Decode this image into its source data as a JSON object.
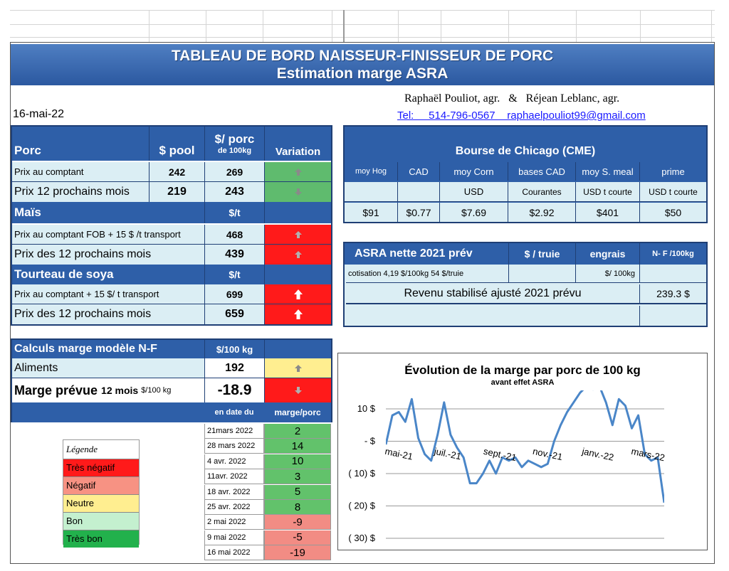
{
  "banner": {
    "title": "TABLEAU DE BORD NAISSEUR-FINISSEUR  DE PORC",
    "subtitle": "Estimation marge ASRA"
  },
  "date": "16-mai-22",
  "authors": "Raphaël Pouliot, agr.   &   Réjean Leblanc, agr.",
  "contact": "Tel:     514-796-0567    raphaelpouliot99@gmail.com",
  "porc": {
    "header": {
      "label": "Porc",
      "pool": "$ pool",
      "porc_top": "$/ porc",
      "porc_bottom": "de 100kg",
      "variation": "Variation"
    },
    "rows": [
      {
        "label": "Prix au comptant",
        "pool": "242",
        "value": "269"
      },
      {
        "label": "Prix 12 prochains mois",
        "pool": "219",
        "value": "243"
      }
    ]
  },
  "mais": {
    "header": {
      "label": "Maïs",
      "unit": "$/t"
    },
    "rows": [
      {
        "label": "Prix au comptant  FOB + 15 $ /t transport",
        "value": "468"
      },
      {
        "label": "Prix des 12 prochains mois",
        "value": "439"
      }
    ]
  },
  "soya": {
    "header": {
      "label": "Tourteau de soya",
      "unit": "$/t"
    },
    "rows": [
      {
        "label": "Prix au comptant  + 15 $/ t  transport",
        "value": "699"
      },
      {
        "label": "Prix des 12 prochains mois",
        "value": "659"
      }
    ]
  },
  "cme": {
    "title": "Bourse de Chicago (CME)",
    "headers": [
      "moy Hog",
      "CAD",
      "moy Corn",
      "bases CAD",
      "moy S. meal",
      "prime"
    ],
    "units": [
      "",
      "",
      "USD",
      "Courantes",
      "USD t courte",
      "USD t courte"
    ],
    "values": [
      "$91",
      "$0.77",
      "$7.69",
      "$2.92",
      "$401",
      "$50"
    ]
  },
  "asra": {
    "title": "ASRA nette 2021 prév",
    "col_truie": "$ / truie",
    "col_engrais": "engrais",
    "col_nf": "N- F /100kg",
    "cotisation": "cotisation 4,19 $/100kg  54 $/truie",
    "engrais_unit": "$/ 100kg",
    "revenu_label": "Revenu stabilisé ajusté 2021 prévu",
    "revenu_value": "239.3 $"
  },
  "calculs": {
    "title": "Calculs marge  modèle N-F",
    "unit": "$/100 kg",
    "aliments_label": "Aliments",
    "aliments_value": "192",
    "marge_label": "Marge prévue",
    "marge_mois": "12 mois",
    "marge_unit": "$/100 kg",
    "marge_value": "-18.9",
    "col_date": "en date du",
    "col_marge": "marge/porc",
    "history": [
      {
        "date": "21mars 2022",
        "value": "2",
        "status": "bon"
      },
      {
        "date": "28 mars 2022",
        "value": "14",
        "status": "bon"
      },
      {
        "date": "4 avr. 2022",
        "value": "10",
        "status": "bon"
      },
      {
        "date": "11avr. 2022",
        "value": "3",
        "status": "bon"
      },
      {
        "date": "18 avr. 2022",
        "value": "5",
        "status": "bon"
      },
      {
        "date": "25 avr. 2022",
        "value": "8",
        "status": "bon"
      },
      {
        "date": "2 mai 2022",
        "value": "-9",
        "status": "negatif"
      },
      {
        "date": "9 mai 2022",
        "value": "-5",
        "status": "negatif"
      },
      {
        "date": "16 mai 2022",
        "value": "-19",
        "status": "negatif"
      }
    ]
  },
  "legend": {
    "title": "Légende",
    "items": [
      {
        "label": "Très négatif",
        "color": "#ff1a1a"
      },
      {
        "label": "Négatif",
        "color": "#f79283"
      },
      {
        "label": "Neutre",
        "color": "#ffee90"
      },
      {
        "label": "Bon",
        "color": "#c4f0cf"
      },
      {
        "label": "Très bon",
        "color": "#22b14c"
      }
    ]
  },
  "colors": {
    "header_blue": "#2e5fa8",
    "light_blue": "#dbeef4",
    "up_green": "#5fbb6e",
    "alert_red": "#ff1a1a",
    "line_blue": "#4a86c8"
  },
  "chart_data": {
    "type": "line",
    "title": "Évolution de la marge par porc de 100 kg",
    "subtitle": "avant effet ASRA",
    "yticks": [
      "10 $",
      "- $",
      "( 10) $",
      "( 20) $",
      "( 30) $"
    ],
    "ylim": [
      -30,
      15
    ],
    "xticks": [
      "mai-21",
      "juil.-21",
      "sept.-21",
      "nov.-21",
      "janv.-22",
      "mars-22"
    ],
    "series": [
      {
        "values": [
          -1,
          8,
          9,
          6,
          13,
          1,
          -4,
          -6,
          2,
          12,
          2,
          -2,
          -5,
          -13,
          -13,
          -10,
          -6,
          -10,
          -5,
          -6,
          -5,
          -8,
          -6,
          -7,
          -8,
          -7,
          0,
          5,
          9,
          12,
          15,
          17,
          16,
          17,
          12,
          5,
          13,
          11,
          4,
          8,
          -4,
          -6,
          -5,
          -19
        ]
      }
    ],
    "grid": true
  }
}
